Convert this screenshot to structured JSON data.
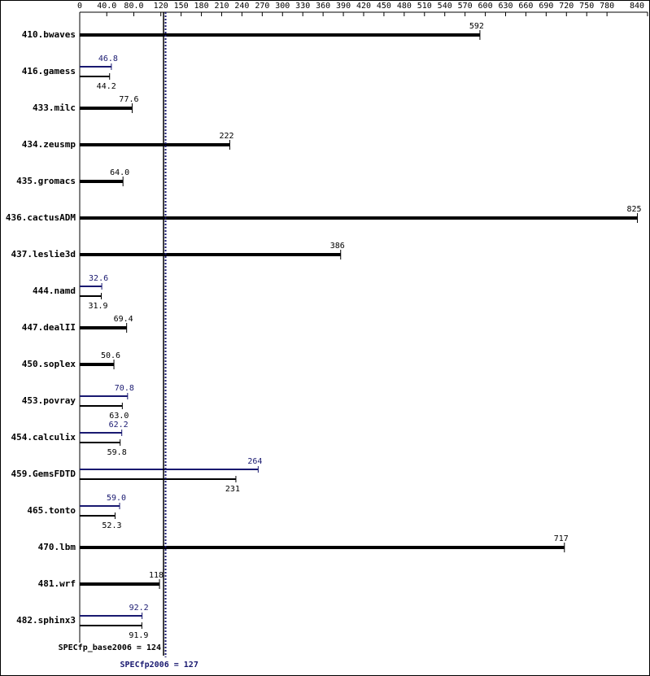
{
  "chart_data": {
    "type": "hbar-pair",
    "categories": [
      "410.bwaves",
      "416.gamess",
      "433.milc",
      "434.zeusmp",
      "435.gromacs",
      "436.cactusADM",
      "437.leslie3d",
      "444.namd",
      "447.dealII",
      "450.soplex",
      "453.povray",
      "454.calculix",
      "459.GemsFDTD",
      "465.tonto",
      "470.lbm",
      "481.wrf",
      "482.sphinx3"
    ],
    "series": [
      {
        "color": "#000000",
        "values": [
          592,
          44.2,
          77.6,
          222,
          64.0,
          825,
          386,
          31.9,
          69.4,
          50.6,
          63.0,
          59.8,
          231,
          52.3,
          717,
          118,
          91.9
        ],
        "value_labels": [
          "592",
          "44.2",
          "77.6",
          "222",
          "64.0",
          "825",
          "386",
          "31.9",
          "69.4",
          "50.6",
          "63.0",
          "59.8",
          "231",
          "52.3",
          "717",
          "118",
          "91.9"
        ]
      },
      {
        "color": "#191970",
        "values": [
          null,
          46.8,
          null,
          null,
          null,
          null,
          null,
          32.6,
          null,
          null,
          70.8,
          62.2,
          264,
          59.0,
          null,
          null,
          92.2
        ],
        "value_labels": [
          null,
          "46.8",
          null,
          null,
          null,
          null,
          null,
          "32.6",
          null,
          null,
          "70.8",
          "62.2",
          "264",
          "59.0",
          null,
          null,
          "92.2"
        ]
      }
    ],
    "xlim": [
      0,
      840
    ],
    "xticks": [
      0,
      {
        "value": 40,
        "label": "40.0"
      },
      {
        "value": 80,
        "label": "80.0"
      },
      120,
      150,
      180,
      210,
      240,
      270,
      300,
      330,
      360,
      390,
      420,
      450,
      480,
      510,
      540,
      570,
      600,
      630,
      660,
      690,
      720,
      750,
      780,
      840
    ],
    "reference_lines": [
      {
        "label": "SPECfp_base2006 = 124",
        "value": 124,
        "style": "solid",
        "color": "#000000"
      },
      {
        "label": "SPECfp2006 = 127",
        "value": 127,
        "style": "dotted",
        "color": "#191970"
      }
    ]
  }
}
